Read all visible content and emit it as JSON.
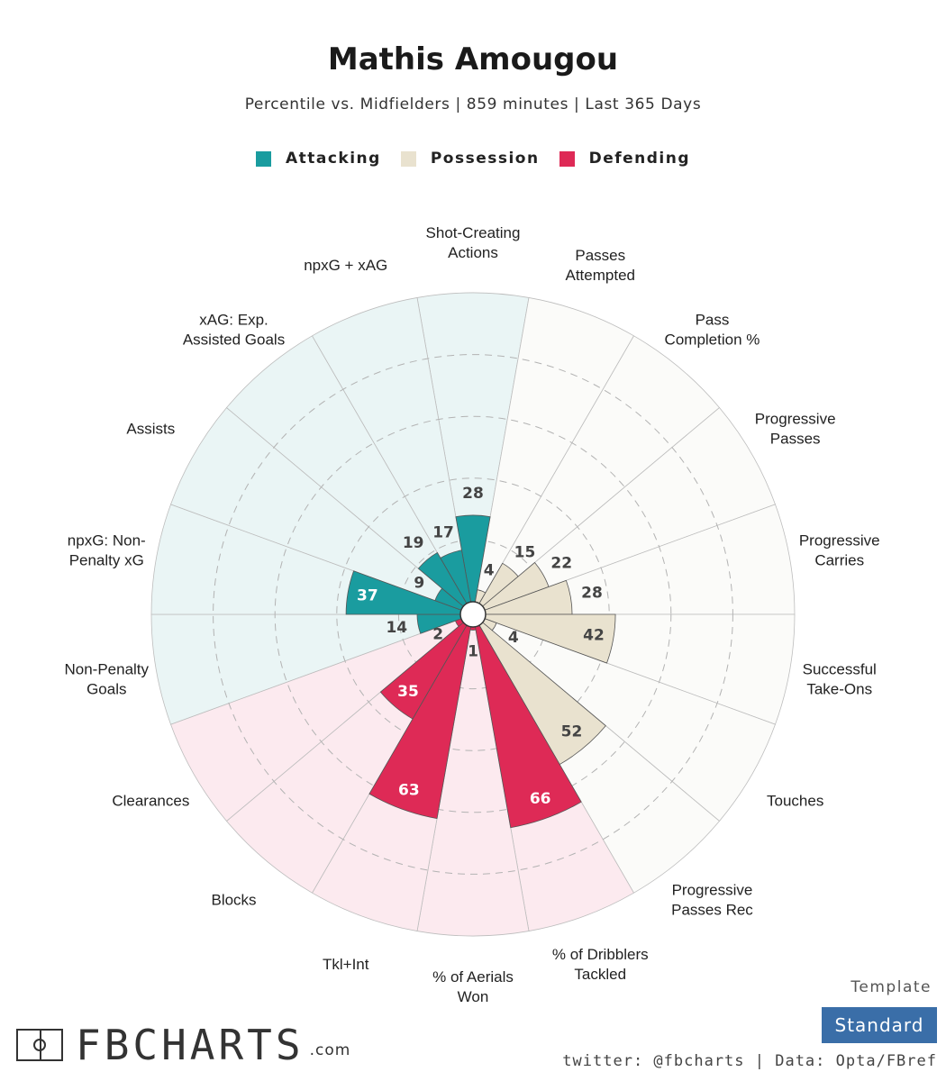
{
  "header": {
    "title": "Mathis Amougou",
    "subtitle": "Percentile vs. Midfielders | 859 minutes | Last 365 Days"
  },
  "legend": [
    {
      "label": "Attacking",
      "color": "#1a9c9f"
    },
    {
      "label": "Possession",
      "color": "#e9e2cf"
    },
    {
      "label": "Defending",
      "color": "#de2a56"
    }
  ],
  "chart_data": {
    "type": "polar-bar",
    "range": [
      0,
      100
    ],
    "categories": [
      {
        "label": "Shot-Creating Actions",
        "lines": [
          "Shot-Creating",
          "Actions"
        ],
        "value": 28,
        "group": "Attacking"
      },
      {
        "label": "Passes Attempted",
        "lines": [
          "Passes",
          "Attempted"
        ],
        "value": 4,
        "group": "Possession"
      },
      {
        "label": "Pass Completion %",
        "lines": [
          "Pass",
          "Completion %"
        ],
        "value": 15,
        "group": "Possession"
      },
      {
        "label": "Progressive Passes",
        "lines": [
          "Progressive",
          "Passes"
        ],
        "value": 22,
        "group": "Possession"
      },
      {
        "label": "Progressive Carries",
        "lines": [
          "Progressive",
          "Carries"
        ],
        "value": 28,
        "group": "Possession"
      },
      {
        "label": "Successful Take-Ons",
        "lines": [
          "Successful",
          "Take-Ons"
        ],
        "value": 42,
        "group": "Possession"
      },
      {
        "label": "Touches",
        "lines": [
          "Touches"
        ],
        "value": 4,
        "group": "Possession"
      },
      {
        "label": "Progressive Passes Rec",
        "lines": [
          "Progressive",
          "Passes Rec"
        ],
        "value": 52,
        "group": "Possession"
      },
      {
        "label": "% of Dribblers Tackled",
        "lines": [
          "% of Dribblers",
          "Tackled"
        ],
        "value": 66,
        "group": "Defending"
      },
      {
        "label": "% of Aerials Won",
        "lines": [
          "% of Aerials",
          "Won"
        ],
        "value": 1,
        "group": "Defending"
      },
      {
        "label": "Tkl+Int",
        "lines": [
          "Tkl+Int"
        ],
        "value": 63,
        "group": "Defending"
      },
      {
        "label": "Blocks",
        "lines": [
          "Blocks"
        ],
        "value": 35,
        "group": "Defending"
      },
      {
        "label": "Clearances",
        "lines": [
          "Clearances"
        ],
        "value": 2,
        "group": "Defending"
      },
      {
        "label": "Non-Penalty Goals",
        "lines": [
          "Non-Penalty",
          "Goals"
        ],
        "value": 14,
        "group": "Attacking"
      },
      {
        "label": "npxG: Non-Penalty xG",
        "lines": [
          "npxG: Non-",
          "Penalty xG"
        ],
        "value": 37,
        "group": "Attacking"
      },
      {
        "label": "Assists",
        "lines": [
          "Assists"
        ],
        "value": 9,
        "group": "Attacking"
      },
      {
        "label": "xAG: Exp. Assisted Goals",
        "lines": [
          "xAG: Exp.",
          "Assisted Goals"
        ],
        "value": 19,
        "group": "Attacking"
      },
      {
        "label": "npxG + xAG",
        "lines": [
          "npxG + xAG"
        ],
        "value": 17,
        "group": "Attacking"
      }
    ],
    "group_colors": {
      "Attacking": {
        "bar": "#1a9c9f",
        "bg": "#eaf5f5",
        "text": "#ffffff"
      },
      "Possession": {
        "bar": "#e9e2cf",
        "bg": "#fbfbf9",
        "text": "#444444"
      },
      "Defending": {
        "bar": "#de2a56",
        "bg": "#fceaef",
        "text": "#ffffff"
      }
    },
    "label_color": "#444444"
  },
  "footer": {
    "logo_text": "FBCHARTS",
    "logo_suffix": ".com",
    "template_label": "Template",
    "template_value": "Standard",
    "credits": "twitter: @fbcharts | Data: Opta/FBref"
  }
}
